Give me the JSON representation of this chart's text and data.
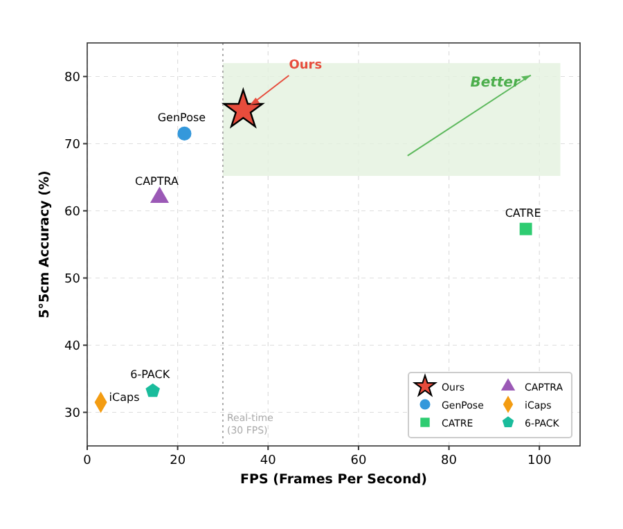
{
  "chart_data": {
    "type": "scatter",
    "xlabel": "FPS (Frames Per Second)",
    "ylabel": "5°5cm Accuracy (%)",
    "xlim": [
      0,
      109
    ],
    "ylim": [
      25,
      85
    ],
    "xticks": [
      0,
      20,
      40,
      60,
      80,
      100
    ],
    "yticks": [
      30,
      40,
      50,
      60,
      70,
      80
    ],
    "grid": true,
    "legend": "bottom right",
    "series": [
      {
        "name": "Ours",
        "color": "#e74c3c",
        "x": [
          34.5
        ],
        "values": [
          75
        ],
        "marker": "star"
      },
      {
        "name": "GenPose",
        "color": "#3498db",
        "x": [
          21.5
        ],
        "values": [
          71.5
        ],
        "marker": "circle"
      },
      {
        "name": "CATRE",
        "color": "#2ecc71",
        "x": [
          97
        ],
        "values": [
          57.3
        ],
        "marker": "square"
      },
      {
        "name": "CAPTRA",
        "color": "#9b59b6",
        "x": [
          16
        ],
        "values": [
          62
        ],
        "marker": "triangle"
      },
      {
        "name": "iCaps",
        "color": "#f39c12",
        "x": [
          3
        ],
        "values": [
          31.5
        ],
        "marker": "diamond"
      },
      {
        "name": "6-PACK",
        "color": "#1abc9c",
        "x": [
          14.5
        ],
        "values": [
          33.2
        ]
      }
    ],
    "ref_lines": [
      {
        "axis": "x",
        "value": 30,
        "label": "Real-time\n(30 FPS)",
        "color": "#aaaaaa",
        "line_style": "dotted"
      }
    ],
    "annotations": [
      {
        "text": "Ours",
        "x": 34.5,
        "y": 75
      },
      "Better"
    ]
  }
}
